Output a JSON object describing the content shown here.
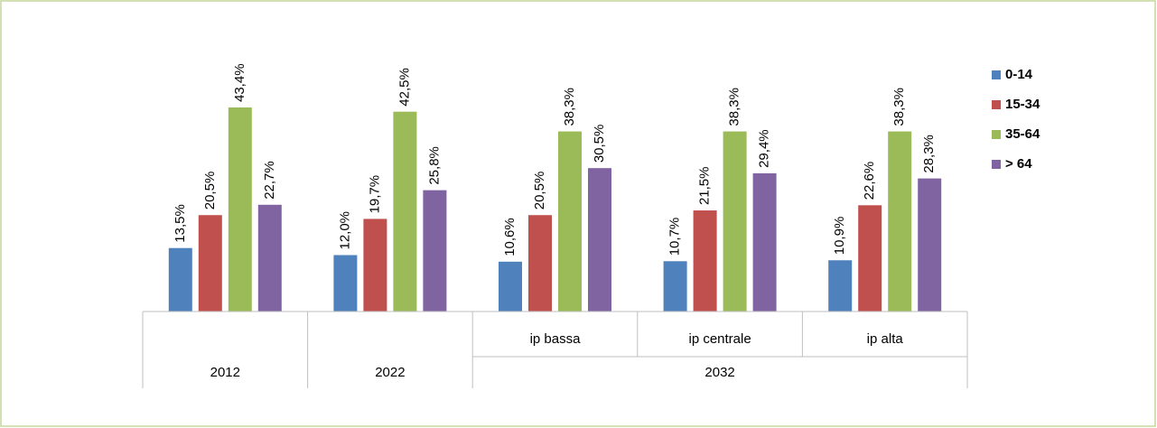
{
  "chart_data": {
    "type": "bar",
    "category_groups": [
      {
        "label": "2012",
        "categories": [
          null
        ]
      },
      {
        "label": "2022",
        "categories": [
          null
        ]
      },
      {
        "label": "2032",
        "categories": [
          "ip bassa",
          "ip centrale",
          "ip alta"
        ]
      }
    ],
    "series": [
      {
        "name": "0-14",
        "color": "#4f81bd",
        "values": [
          13.5,
          12.0,
          10.6,
          10.7,
          10.9
        ],
        "value_labels": [
          "13,5%",
          "12,0%",
          "10,6%",
          "10,7%",
          "10,9%"
        ]
      },
      {
        "name": "15-34",
        "color": "#c0504d",
        "values": [
          20.5,
          19.7,
          20.5,
          21.5,
          22.6
        ],
        "value_labels": [
          "20,5%",
          "19,7%",
          "20,5%",
          "21,5%",
          "22,6%"
        ]
      },
      {
        "name": "35-64",
        "color": "#9bbb59",
        "values": [
          43.4,
          42.5,
          38.3,
          38.3,
          38.3
        ],
        "value_labels": [
          "43,4%",
          "42,5%",
          "38,3%",
          "38,3%",
          "38,3%"
        ]
      },
      {
        "name": "> 64",
        "color": "#8064a2",
        "values": [
          22.7,
          25.8,
          30.5,
          29.4,
          28.3
        ],
        "value_labels": [
          "22,7%",
          "25,8%",
          "30,5%",
          "29,4%",
          "28,3%"
        ]
      }
    ],
    "legend": "right"
  }
}
